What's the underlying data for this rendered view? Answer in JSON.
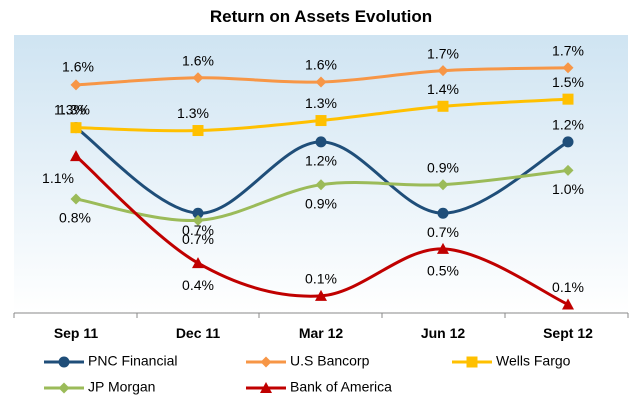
{
  "chart_data": {
    "type": "line",
    "title": "Return on Assets Evolution",
    "xlabel": "",
    "ylabel": "",
    "ylim": [
      0,
      1.95
    ],
    "grid": false,
    "legend_position": "bottom",
    "categories": [
      "Sep 11",
      "Dec 11",
      "Mar 12",
      "Jun 12",
      "Sept 12"
    ],
    "series": [
      {
        "name": "PNC Financial",
        "color": "#1f4e79",
        "marker": "circle",
        "values": [
          1.3,
          0.7,
          1.2,
          0.7,
          1.2
        ],
        "labels": [
          "1.3%",
          "0.7%",
          "1.2%",
          "0.7%",
          "1.2%"
        ]
      },
      {
        "name": "U.S Bancorp",
        "color": "#f79646",
        "marker": "diamond",
        "values": [
          1.6,
          1.65,
          1.62,
          1.7,
          1.72
        ],
        "labels": [
          "1.6%",
          "1.6%",
          "1.6%",
          "1.7%",
          "1.7%"
        ]
      },
      {
        "name": "Wells Fargo",
        "color": "#ffc000",
        "marker": "square",
        "values": [
          1.3,
          1.28,
          1.35,
          1.45,
          1.5
        ],
        "labels": [
          "1.3%",
          "1.3%",
          "1.3%",
          "1.4%",
          "1.5%"
        ]
      },
      {
        "name": "JP Morgan",
        "color": "#9bbb59",
        "marker": "diamond",
        "values": [
          0.8,
          0.65,
          0.9,
          0.9,
          1.0
        ],
        "labels": [
          "0.8%",
          "0.7%",
          "0.9%",
          "0.9%",
          "1.0%"
        ]
      },
      {
        "name": "Bank of America",
        "color": "#c00000",
        "marker": "triangle",
        "values": [
          1.1,
          0.35,
          0.12,
          0.45,
          0.06
        ],
        "labels": [
          "1.1%",
          "0.4%",
          "0.1%",
          "0.5%",
          "0.1%"
        ]
      }
    ]
  }
}
